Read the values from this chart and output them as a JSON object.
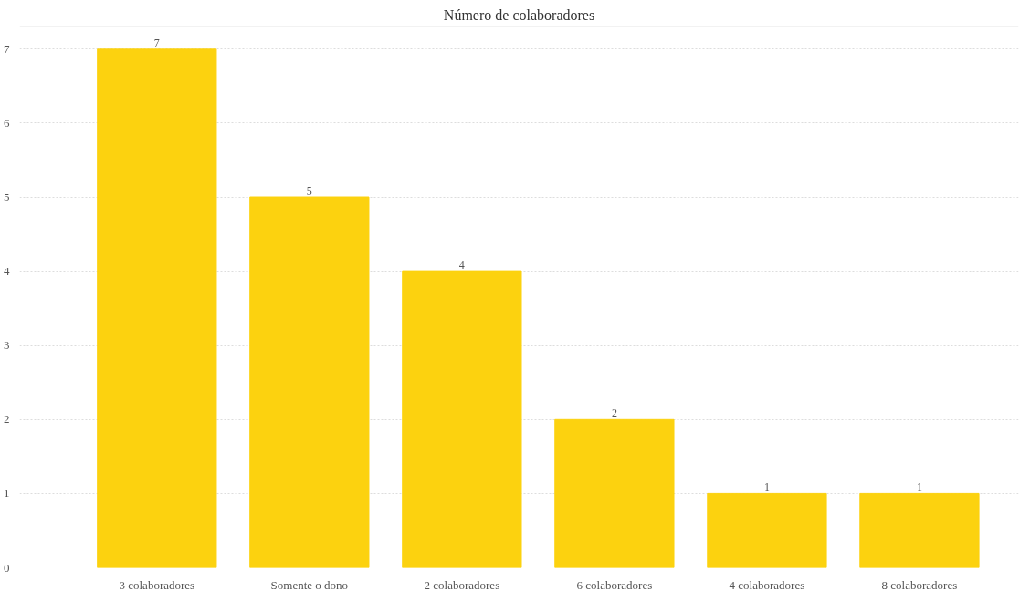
{
  "chart_data": {
    "type": "bar",
    "title": "Número de colaboradores",
    "categories": [
      "3 colaboradores",
      "Somente o dono",
      "2 colaboradores",
      "6 colaboradores",
      "4 colaboradores",
      "8 colaboradores"
    ],
    "values": [
      7,
      5,
      4,
      2,
      1,
      1
    ],
    "color": "#fcd20f",
    "ylim": [
      0,
      7.3
    ],
    "yticks": [
      0,
      1,
      2,
      3,
      4,
      5,
      6,
      7
    ],
    "grid": "y",
    "data_labels": true
  }
}
